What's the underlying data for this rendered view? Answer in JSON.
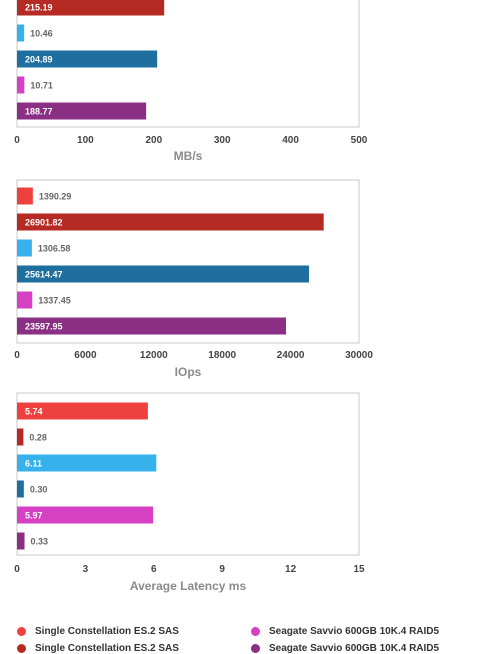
{
  "colors": {
    "series": [
      "#ef4040",
      "#b52a22",
      "#36b1ec",
      "#1e6f9f",
      "#d640c2",
      "#8a2f84"
    ],
    "label_inside": "#ffffff",
    "label_outside": "#666666",
    "frame": "#c8c8c8"
  },
  "chart_data": [
    {
      "type": "bar",
      "orientation": "horizontal",
      "xlabel": "MB/s",
      "xlim": [
        0,
        500
      ],
      "ticks": [
        "0",
        "100",
        "200",
        "300",
        "400",
        "500"
      ],
      "values": [
        215.19,
        10.46,
        204.89,
        10.71,
        188.77
      ],
      "labels": [
        "215.19",
        "10.46",
        "204.89",
        "10.71",
        "188.77"
      ],
      "series_index": [
        1,
        2,
        3,
        4,
        5
      ],
      "grid": false
    },
    {
      "type": "bar",
      "orientation": "horizontal",
      "xlabel": "IOps",
      "xlim": [
        0,
        30000
      ],
      "ticks": [
        "0",
        "6000",
        "12000",
        "18000",
        "24000",
        "30000"
      ],
      "values": [
        1390.29,
        26901.82,
        1306.58,
        25614.47,
        1337.45,
        23597.95
      ],
      "labels": [
        "1390.29",
        "26901.82",
        "1306.58",
        "25614.47",
        "1337.45",
        "23597.95"
      ],
      "series_index": [
        0,
        1,
        2,
        3,
        4,
        5
      ],
      "grid": false
    },
    {
      "type": "bar",
      "orientation": "horizontal",
      "xlabel": "Average Latency ms",
      "xlim": [
        0,
        15
      ],
      "ticks": [
        "0",
        "3",
        "6",
        "9",
        "12",
        "15"
      ],
      "values": [
        5.74,
        0.28,
        6.11,
        0.3,
        5.97,
        0.33
      ],
      "labels": [
        "5.74",
        "0.28",
        "6.11",
        "0.30",
        "5.97",
        "0.33"
      ],
      "series_index": [
        0,
        1,
        2,
        3,
        4,
        5
      ],
      "grid": false
    }
  ],
  "legend": {
    "placement": "bottom",
    "items": [
      {
        "label": "Single Constellation ES.2 SAS",
        "color": "#ef4040"
      },
      {
        "label": "Single Constellation ES.2 SAS",
        "color": "#b52a22"
      },
      {
        "label": "Seagate Savvio 600GB 10K.4 RAID5",
        "color": "#d640c2"
      },
      {
        "label": "Seagate Savvio 600GB 10K.4 RAID5",
        "color": "#8a2f84"
      }
    ]
  }
}
